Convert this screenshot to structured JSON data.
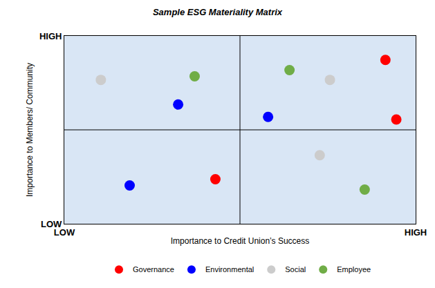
{
  "chart_data": {
    "type": "scatter",
    "title": "Sample ESG Materiality Matrix",
    "x_label": "Importance to Credit Union’s Success",
    "y_label": "Importance to Members/ Community",
    "xlim": [
      0,
      10
    ],
    "ylim": [
      0,
      10
    ],
    "xticks": [
      {
        "value": 0,
        "label": "LOW"
      },
      {
        "value": 10,
        "label": "HIGH"
      }
    ],
    "yticks": [
      {
        "value": 0,
        "label": "LOW"
      },
      {
        "value": 10,
        "label": "HIGH"
      }
    ],
    "grid": false,
    "legend": "bottom",
    "marker": "circle",
    "series": [
      {
        "name": "Governance",
        "color": "#ff0000",
        "x": [
          9.14,
          9.45,
          4.3
        ],
        "values": [
          8.72,
          5.55,
          2.37
        ]
      },
      {
        "name": "Environmental",
        "color": "#0000ff",
        "x": [
          3.24,
          5.8,
          1.86
        ],
        "values": [
          6.35,
          5.69,
          2.04
        ]
      },
      {
        "name": "Social",
        "color": "#cccccc",
        "x": [
          1.04,
          7.56,
          7.27
        ],
        "values": [
          7.66,
          7.66,
          3.65
        ]
      },
      {
        "name": "Employee",
        "color": "#70ad47",
        "x": [
          3.71,
          6.41,
          8.55
        ],
        "values": [
          7.85,
          8.18,
          1.82
        ]
      }
    ]
  }
}
